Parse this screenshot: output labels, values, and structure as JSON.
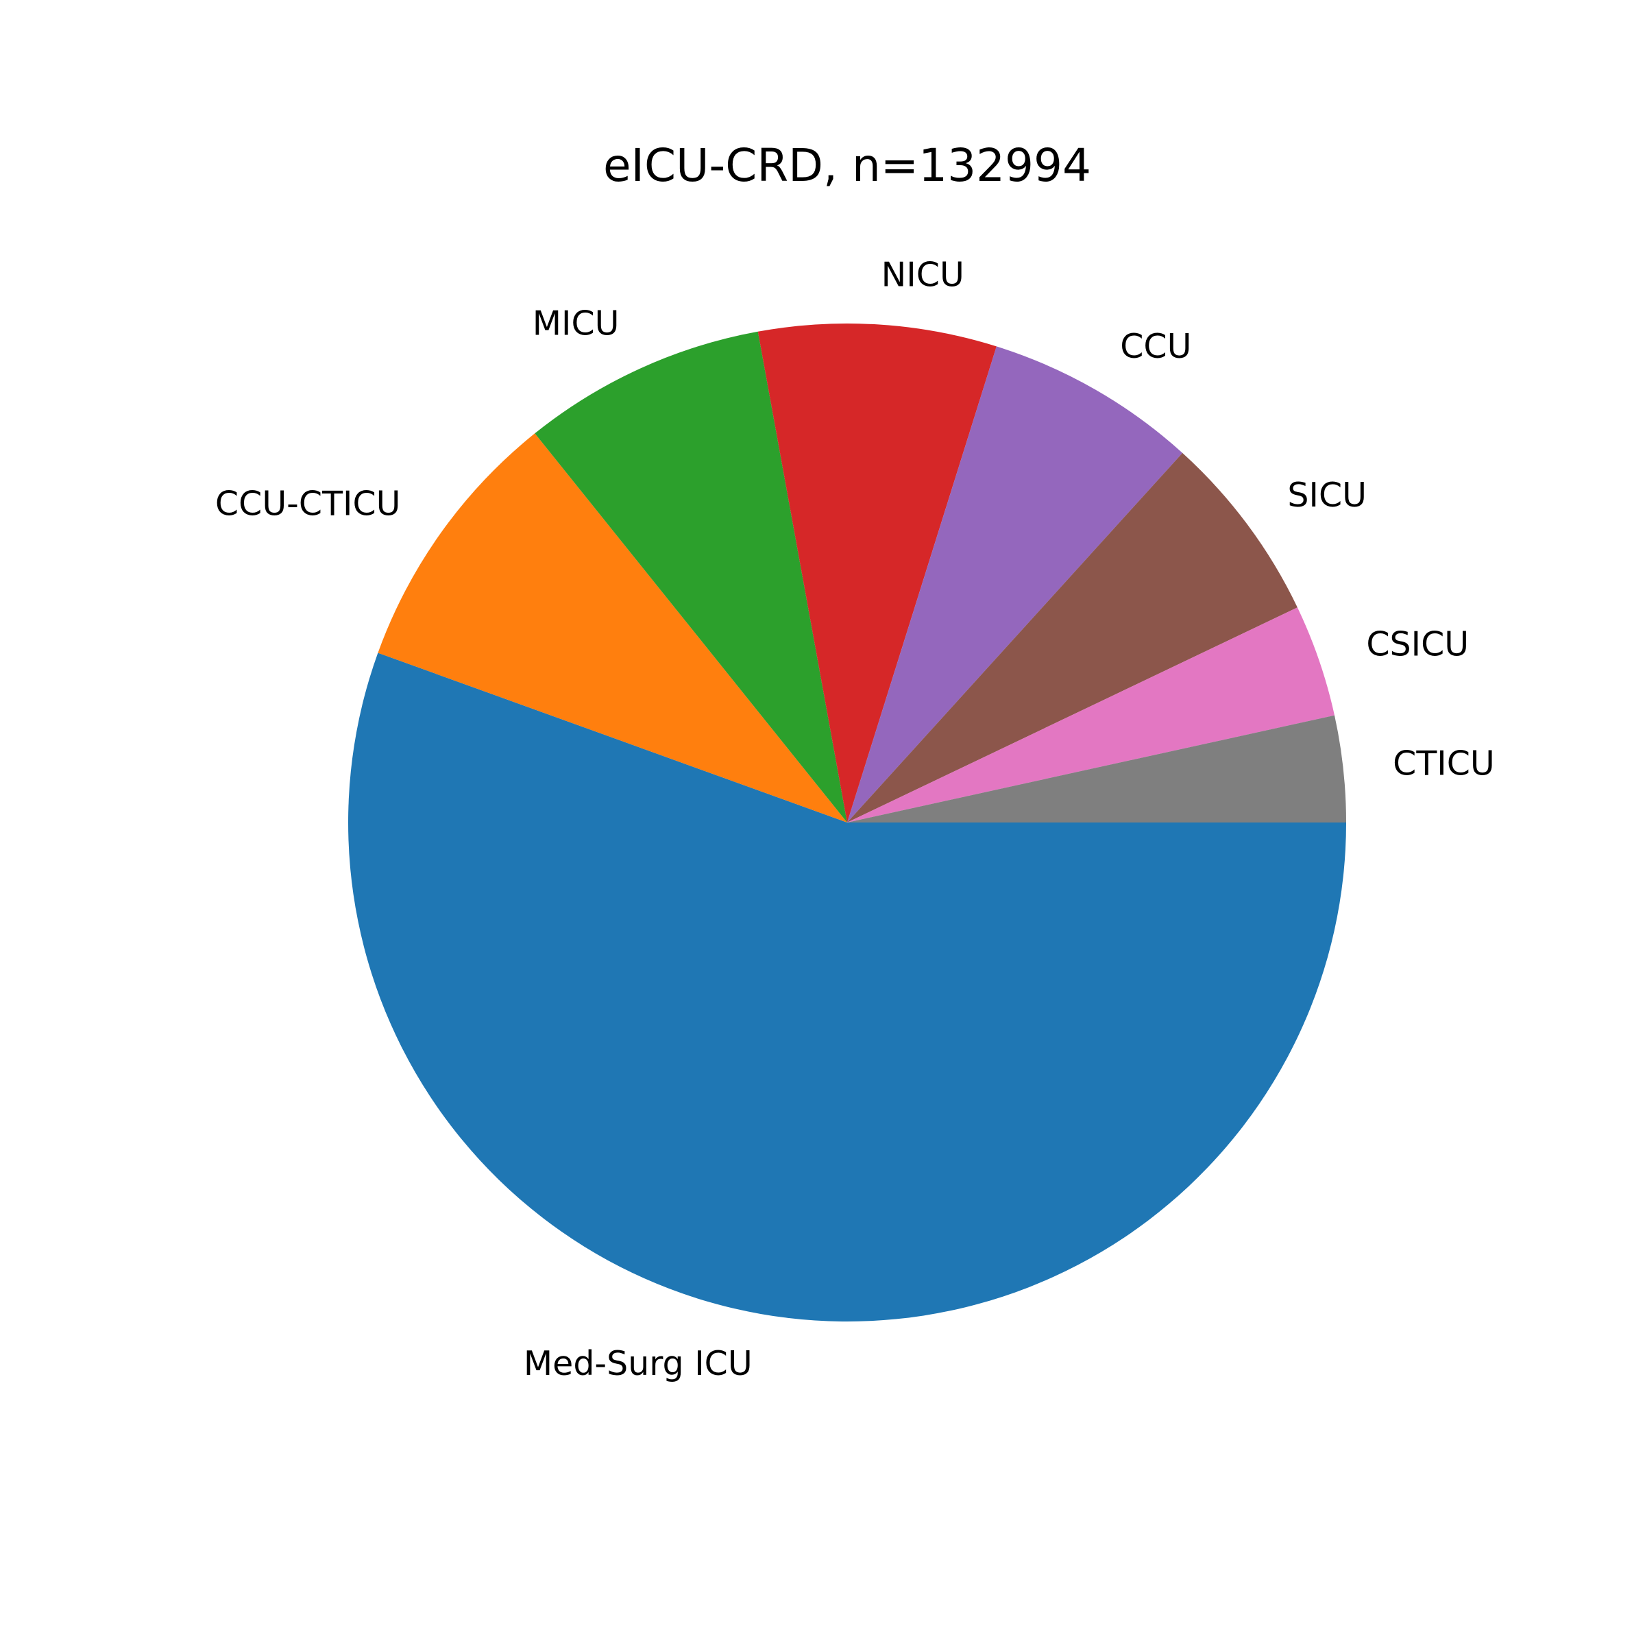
{
  "chart_data": {
    "type": "pie",
    "title": "eICU-CRD, n=132994",
    "start_angle_deg": 0,
    "direction": "clockwise",
    "slices": [
      {
        "label": "Med-Surg ICU",
        "value": 54.8,
        "color": "#1f77b4"
      },
      {
        "label": "CCU-CTICU",
        "value": 8.6,
        "color": "#ff7f0e"
      },
      {
        "label": "MICU",
        "value": 7.8,
        "color": "#2ca02c"
      },
      {
        "label": "NICU",
        "value": 7.6,
        "color": "#d62728"
      },
      {
        "label": "CCU",
        "value": 6.8,
        "color": "#9467bd"
      },
      {
        "label": "SICU",
        "value": 6.1,
        "color": "#8c564b"
      },
      {
        "label": "CSICU",
        "value": 3.6,
        "color": "#e377c2"
      },
      {
        "label": "CTICU",
        "value": 3.4,
        "color": "#7f7f7f"
      }
    ]
  }
}
